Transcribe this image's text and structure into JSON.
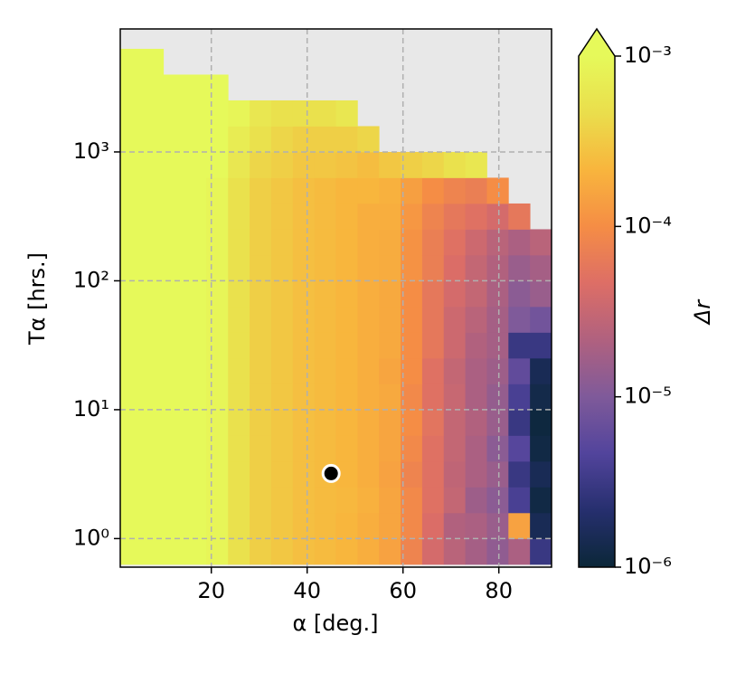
{
  "chart_data": {
    "type": "heatmap",
    "x_label": "α [deg.]",
    "y_label": "Tα [hrs.]",
    "colorbar_label": "Δr",
    "xlim": [
      1,
      91
    ],
    "ylim": [
      0.6,
      9000
    ],
    "y_log": true,
    "xticks": [
      20,
      40,
      60,
      80
    ],
    "yticks": [
      {
        "value": 1,
        "label": "10⁰"
      },
      {
        "value": 10,
        "label": "10¹"
      },
      {
        "value": 100,
        "label": "10²"
      },
      {
        "value": 1000,
        "label": "10³"
      }
    ],
    "grid": true,
    "clim": [
      1e-06,
      0.001
    ],
    "cticks": [
      {
        "value": 1e-06,
        "label": "10⁻⁶"
      },
      {
        "value": 1e-05,
        "label": "10⁻⁵"
      },
      {
        "value": 0.0001,
        "label": "10⁻⁴"
      },
      {
        "value": 0.001,
        "label": "10⁻³"
      }
    ],
    "colormap": [
      "#0b2738",
      "#262f6e",
      "#52449c",
      "#7f5a9a",
      "#b0617f",
      "#dd6e66",
      "#f58d45",
      "#f8b53d",
      "#eade4c",
      "#e6f95a"
    ],
    "nan_color": "#e8e8e8",
    "x_edges": [
      1,
      5.5,
      10,
      14.5,
      19,
      23.5,
      28,
      32.5,
      37,
      41.5,
      46,
      50.5,
      55,
      59.5,
      64,
      68.5,
      73,
      77.5,
      82,
      86.5,
      91
    ],
    "y_edges": [
      0.631,
      1,
      1.585,
      2.512,
      3.981,
      6.31,
      10,
      15.85,
      25.12,
      39.81,
      63.1,
      100,
      158.5,
      251.2,
      398.1,
      631,
      1000,
      1585,
      2512,
      3981,
      6310,
      10000
    ],
    "z": [
      [
        0.002,
        0.002,
        0.002,
        0.002,
        0.0009,
        0.0005,
        0.00035,
        0.0003,
        0.00026,
        0.00024,
        0.00022,
        0.00019,
        0.00015,
        8e-05,
        4e-05,
        2.5e-05,
        1.8e-05,
        1.3e-05,
        2e-05,
        3e-06
      ],
      [
        0.002,
        0.002,
        0.002,
        0.002,
        0.0009,
        0.0005,
        0.00035,
        0.0003,
        0.00026,
        0.00024,
        0.00022,
        0.00019,
        0.00016,
        9e-05,
        4.5e-05,
        2.2e-05,
        2e-05,
        1.5e-05,
        0.00015,
        1.5e-06
      ],
      [
        0.002,
        0.002,
        0.002,
        0.002,
        0.0009,
        0.0005,
        0.00035,
        0.0003,
        0.00026,
        0.00024,
        0.00023,
        0.0002,
        0.00016,
        9e-05,
        5e-05,
        3e-05,
        1.6e-05,
        1.2e-05,
        4e-06,
        1.2e-06
      ],
      [
        0.002,
        0.002,
        0.002,
        0.002,
        0.0009,
        0.0005,
        0.00035,
        0.0003,
        0.00026,
        0.00024,
        0.00022,
        0.00019,
        0.00015,
        8e-05,
        5e-05,
        2.8e-05,
        2e-05,
        1.5e-05,
        3e-06,
        1.5e-06
      ],
      [
        0.002,
        0.002,
        0.002,
        0.002,
        0.0009,
        0.0005,
        0.00035,
        0.0003,
        0.00026,
        0.00024,
        0.00022,
        0.00019,
        0.00016,
        9e-05,
        5e-05,
        3e-05,
        2e-05,
        1.2e-05,
        5e-06,
        1.2e-06
      ],
      [
        0.002,
        0.002,
        0.002,
        0.002,
        0.0009,
        0.0005,
        0.00035,
        0.0003,
        0.00026,
        0.00024,
        0.00022,
        0.00019,
        0.00016,
        0.0001,
        5.5e-05,
        3e-05,
        2.2e-05,
        1.5e-05,
        3e-06,
        1.1e-06
      ],
      [
        0.002,
        0.002,
        0.002,
        0.002,
        0.0009,
        0.0005,
        0.00035,
        0.0003,
        0.00026,
        0.00024,
        0.00022,
        0.00019,
        0.00017,
        9e-05,
        5e-05,
        3.2e-05,
        2e-05,
        1.4e-05,
        4e-06,
        1.3e-06
      ],
      [
        0.002,
        0.002,
        0.002,
        0.002,
        0.0009,
        0.0005,
        0.00035,
        0.0003,
        0.00026,
        0.00024,
        0.00022,
        0.00019,
        0.00016,
        0.0001,
        5e-05,
        3e-05,
        2e-05,
        1.6e-05,
        6e-06,
        1.5e-06
      ],
      [
        0.002,
        0.002,
        0.002,
        0.002,
        0.0009,
        0.0005,
        0.00035,
        0.0003,
        0.00026,
        0.00024,
        0.00022,
        0.00019,
        0.00017,
        0.0001,
        6e-05,
        3.5e-05,
        2.2e-05,
        1.8e-05,
        3e-06,
        3e-06
      ],
      [
        0.002,
        0.002,
        0.002,
        0.002,
        0.0009,
        0.0005,
        0.00035,
        0.0003,
        0.00026,
        0.00024,
        0.00022,
        0.00019,
        0.00017,
        0.0001,
        6e-05,
        3.5e-05,
        2.5e-05,
        1.8e-05,
        1e-05,
        8e-06
      ],
      [
        0.002,
        0.002,
        0.002,
        0.002,
        0.0009,
        0.0005,
        0.00035,
        0.0003,
        0.00026,
        0.00024,
        0.00022,
        0.00019,
        0.00017,
        0.0001,
        6e-05,
        4e-05,
        3e-05,
        2e-05,
        1.2e-05,
        1.5e-05
      ],
      [
        0.002,
        0.002,
        0.002,
        0.002,
        0.0009,
        0.0005,
        0.00035,
        0.0003,
        0.00026,
        0.00024,
        0.00022,
        0.00019,
        0.00018,
        0.00011,
        7e-05,
        4.5e-05,
        3e-05,
        2.2e-05,
        1.5e-05,
        1.8e-05
      ],
      [
        0.002,
        0.002,
        0.002,
        0.002,
        0.0009,
        0.0005,
        0.00035,
        0.0003,
        0.00026,
        0.00024,
        0.00022,
        0.00019,
        0.00018,
        0.00011,
        7e-05,
        5e-05,
        3.5e-05,
        2.5e-05,
        2e-05,
        2.5e-05
      ],
      [
        0.002,
        0.002,
        0.002,
        0.002,
        0.0009,
        0.0005,
        0.00035,
        0.0003,
        0.00026,
        0.00024,
        0.00022,
        0.00019,
        0.00019,
        0.00012,
        8e-05,
        6e-05,
        5e-05,
        4e-05,
        6e-05,
        null
      ],
      [
        0.002,
        0.002,
        0.002,
        0.002,
        0.0009,
        0.0005,
        0.00035,
        0.0003,
        0.00026,
        0.00024,
        0.00022,
        0.00022,
        0.0002,
        0.00014,
        0.0001,
        8e-05,
        7e-05,
        0.0001,
        null,
        null
      ],
      [
        0.002,
        0.002,
        0.002,
        0.002,
        0.001,
        0.0006,
        0.0004,
        0.00035,
        0.0003,
        0.0003,
        0.00028,
        0.00025,
        0.0003,
        0.00035,
        0.0004,
        0.0005,
        0.0006,
        null,
        null,
        null
      ],
      [
        0.002,
        0.002,
        0.002,
        0.002,
        0.0012,
        0.0007,
        0.0005,
        0.0004,
        0.00035,
        0.00035,
        0.00035,
        0.0004,
        null,
        null,
        null,
        null,
        null,
        null,
        null,
        null
      ],
      [
        0.002,
        0.002,
        0.002,
        0.002,
        0.0015,
        0.0009,
        0.0006,
        0.0005,
        0.0005,
        0.0005,
        0.0006,
        null,
        null,
        null,
        null,
        null,
        null,
        null,
        null,
        null
      ],
      [
        0.002,
        0.002,
        0.002,
        0.002,
        0.002,
        null,
        null,
        null,
        null,
        null,
        null,
        null,
        null,
        null,
        null,
        null,
        null,
        null,
        null,
        null
      ],
      [
        0.002,
        0.002,
        null,
        null,
        null,
        null,
        null,
        null,
        null,
        null,
        null,
        null,
        null,
        null,
        null,
        null,
        null,
        null,
        null,
        null
      ],
      [
        null,
        null,
        null,
        null,
        null,
        null,
        null,
        null,
        null,
        null,
        null,
        null,
        null,
        null,
        null,
        null,
        null,
        null,
        null,
        null
      ]
    ],
    "point": {
      "x": 45,
      "y": 3.2,
      "color": "#000000"
    }
  }
}
